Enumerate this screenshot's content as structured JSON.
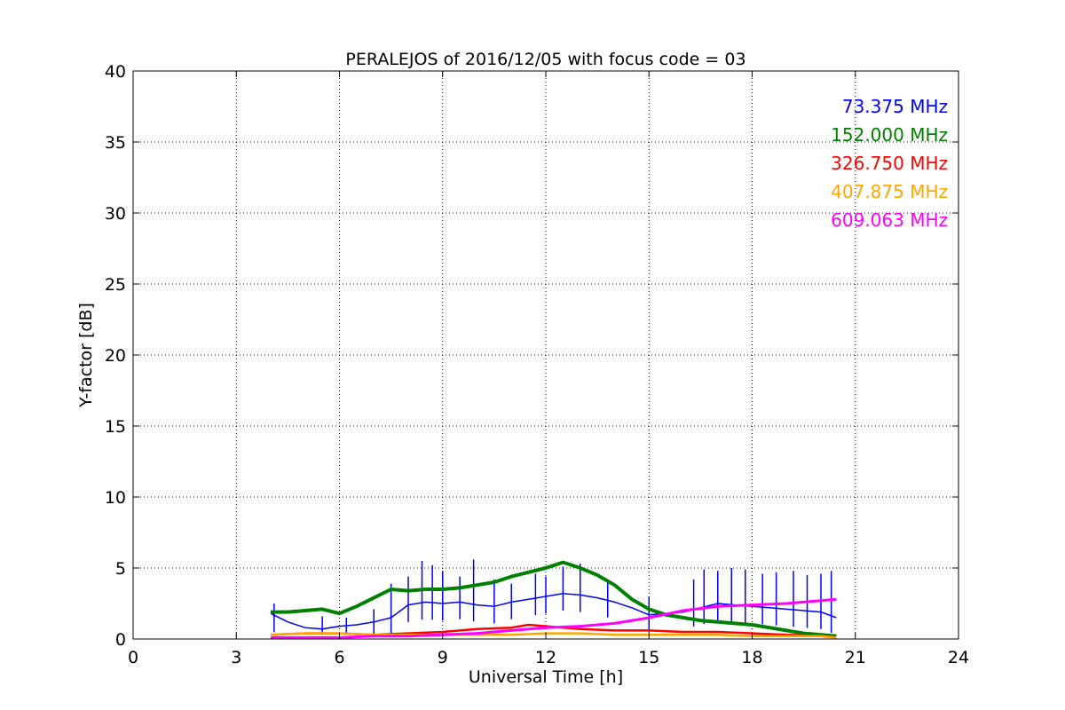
{
  "chart_data": {
    "type": "line",
    "title": "PERALEJOS of 2016/12/05 with focus code = 03",
    "xlabel": "Universal Time [h]",
    "ylabel": "Y-factor [dB]",
    "xlim": [
      0,
      24
    ],
    "ylim": [
      0,
      40
    ],
    "xticks": [
      "0",
      "3",
      "6",
      "9",
      "12",
      "15",
      "18",
      "21",
      "24"
    ],
    "yticks": [
      "0",
      "5",
      "10",
      "15",
      "20",
      "25",
      "30",
      "35",
      "40"
    ],
    "grid": true,
    "legend_position": "top-right",
    "series": [
      {
        "name": "73.375 MHz",
        "color": "#0000ff",
        "x": [
          4.0,
          4.5,
          5.0,
          5.5,
          6.0,
          6.5,
          7.0,
          7.5,
          8.0,
          8.5,
          9.0,
          9.5,
          10.0,
          10.5,
          11.0,
          11.5,
          12.0,
          12.5,
          13.0,
          13.5,
          14.0,
          14.5,
          15.0,
          15.5,
          16.0,
          16.5,
          17.0,
          17.5,
          18.0,
          18.5,
          19.0,
          19.5,
          20.0,
          20.45
        ],
        "y": [
          1.8,
          1.2,
          0.8,
          0.7,
          0.9,
          1.0,
          1.2,
          1.5,
          2.4,
          2.6,
          2.5,
          2.6,
          2.4,
          2.3,
          2.6,
          2.8,
          3.0,
          3.2,
          3.1,
          2.9,
          2.6,
          2.2,
          1.7,
          1.8,
          1.9,
          2.2,
          2.5,
          2.4,
          2.3,
          2.2,
          2.1,
          2.0,
          1.9,
          1.5
        ],
        "spikes_x": [
          4.1,
          5.5,
          6.2,
          7.0,
          7.5,
          8.0,
          8.4,
          8.7,
          9.0,
          9.5,
          9.9,
          10.5,
          11.0,
          11.7,
          12.0,
          12.5,
          13.0,
          13.8,
          15.0,
          16.3,
          16.6,
          17.0,
          17.4,
          17.8,
          18.3,
          18.7,
          19.2,
          19.6,
          20.0,
          20.3
        ],
        "spikes_y": [
          2.5,
          1.6,
          1.5,
          2.1,
          3.9,
          4.4,
          5.5,
          5.2,
          4.8,
          4.4,
          5.6,
          4.2,
          3.9,
          4.6,
          4.4,
          5.1,
          5.3,
          4.1,
          3.0,
          4.2,
          4.9,
          4.8,
          5.0,
          4.9,
          4.6,
          4.7,
          4.8,
          4.5,
          4.6,
          4.8
        ]
      },
      {
        "name": "152.000 MHz",
        "color": "#008000",
        "x": [
          4.0,
          4.5,
          5.0,
          5.5,
          6.0,
          6.5,
          7.0,
          7.5,
          8.0,
          8.5,
          9.0,
          9.5,
          10.0,
          10.5,
          11.0,
          11.5,
          12.0,
          12.5,
          13.0,
          13.5,
          14.0,
          14.5,
          15.0,
          15.5,
          16.0,
          16.5,
          17.0,
          17.5,
          18.0,
          18.5,
          19.0,
          19.5,
          20.0,
          20.45
        ],
        "y": [
          1.9,
          1.9,
          2.0,
          2.1,
          1.8,
          2.3,
          2.9,
          3.5,
          3.4,
          3.5,
          3.5,
          3.6,
          3.8,
          4.0,
          4.4,
          4.7,
          5.0,
          5.4,
          5.0,
          4.5,
          3.8,
          2.8,
          2.1,
          1.7,
          1.5,
          1.3,
          1.2,
          1.1,
          1.0,
          0.8,
          0.6,
          0.4,
          0.3,
          0.2
        ]
      },
      {
        "name": "326.750 MHz",
        "color": "#ff0000",
        "x": [
          4.0,
          5.0,
          6.0,
          7.0,
          8.0,
          9.0,
          10.0,
          11.0,
          11.5,
          12.0,
          12.5,
          13.0,
          14.0,
          15.0,
          16.0,
          17.0,
          18.0,
          19.0,
          20.0,
          20.45
        ],
        "y": [
          0.3,
          0.4,
          0.4,
          0.3,
          0.4,
          0.5,
          0.7,
          0.8,
          1.0,
          0.9,
          0.8,
          0.7,
          0.6,
          0.6,
          0.5,
          0.5,
          0.4,
          0.3,
          0.2,
          0.1
        ]
      },
      {
        "name": "407.875 MHz",
        "color": "#ffa500",
        "x": [
          4.0,
          5.0,
          6.0,
          7.0,
          8.0,
          9.0,
          10.0,
          11.0,
          12.0,
          13.0,
          14.0,
          15.0,
          16.0,
          17.0,
          18.0,
          19.0,
          20.0,
          20.45
        ],
        "y": [
          0.3,
          0.4,
          0.4,
          0.3,
          0.3,
          0.3,
          0.3,
          0.3,
          0.4,
          0.4,
          0.3,
          0.3,
          0.3,
          0.3,
          0.2,
          0.2,
          0.2,
          0.1
        ]
      },
      {
        "name": "609.063 MHz",
        "color": "#ff00ff",
        "x": [
          4.0,
          5.0,
          6.0,
          7.0,
          8.0,
          9.0,
          10.0,
          11.0,
          12.0,
          13.0,
          14.0,
          15.0,
          16.0,
          17.0,
          18.0,
          19.0,
          20.0,
          20.45
        ],
        "y": [
          0.1,
          0.1,
          0.1,
          0.2,
          0.2,
          0.3,
          0.4,
          0.6,
          0.8,
          0.9,
          1.1,
          1.5,
          2.0,
          2.3,
          2.4,
          2.5,
          2.7,
          2.8
        ]
      }
    ]
  }
}
